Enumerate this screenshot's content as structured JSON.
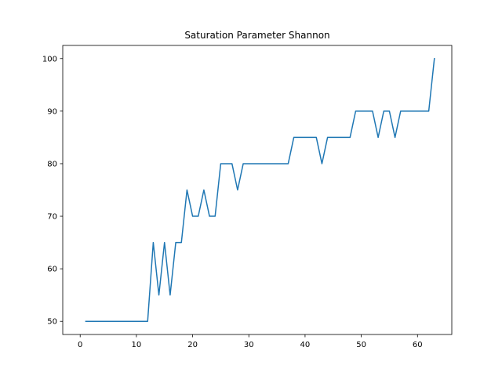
{
  "chart_data": {
    "type": "line",
    "title": "Saturation Parameter Shannon",
    "xlabel": "",
    "ylabel": "",
    "xlim": [
      -3.1,
      66.1
    ],
    "ylim": [
      47.5,
      102.5
    ],
    "xticks": [
      0,
      10,
      20,
      30,
      40,
      50,
      60
    ],
    "yticks": [
      50,
      60,
      70,
      80,
      90,
      100
    ],
    "grid": false,
    "line_color": "#1f77b4",
    "series": [
      {
        "x": [
          1,
          2,
          3,
          4,
          5,
          6,
          7,
          8,
          9,
          10,
          11,
          12,
          13,
          14,
          15,
          16,
          17,
          18,
          19,
          20,
          21,
          22,
          23,
          24,
          25,
          26,
          27,
          28,
          29,
          30,
          31,
          32,
          33,
          34,
          35,
          36,
          37,
          38,
          39,
          40,
          41,
          42,
          43,
          44,
          45,
          46,
          47,
          48,
          49,
          50,
          51,
          52,
          53,
          54,
          55,
          56,
          57,
          58,
          59,
          60,
          61,
          62,
          63
        ],
        "values": [
          50,
          50,
          50,
          50,
          50,
          50,
          50,
          50,
          50,
          50,
          50,
          50,
          65,
          55,
          65,
          55,
          65,
          65,
          75,
          70,
          70,
          75,
          70,
          70,
          80,
          80,
          80,
          75,
          80,
          80,
          80,
          80,
          80,
          80,
          80,
          80,
          80,
          85,
          85,
          85,
          85,
          85,
          80,
          85,
          85,
          85,
          85,
          85,
          90,
          90,
          90,
          90,
          85,
          90,
          90,
          85,
          90,
          90,
          90,
          90,
          90,
          90,
          100
        ]
      }
    ]
  }
}
